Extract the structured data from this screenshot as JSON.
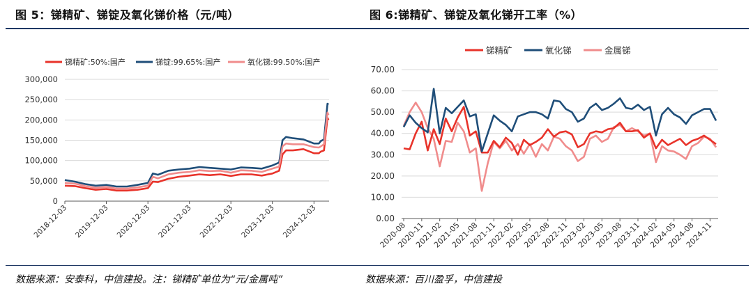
{
  "colors": {
    "red": "#e8332a",
    "navy": "#1f4e79",
    "pink": "#f08c8c",
    "grid": "#d9d9d9",
    "axis": "#595959",
    "rule": "#1f3864"
  },
  "chart_data": [
    {
      "type": "line",
      "title": "图 5：锑精矿、锑锭及氧化锑价格（元/吨）",
      "source": "数据来源：安泰科，中信建投。注：锑精矿单位为“元/金属吨”",
      "ylim": [
        0,
        300000
      ],
      "yticks": [
        "0",
        "50,000",
        "100,000",
        "150,000",
        "200,000",
        "250,000",
        "300,000"
      ],
      "xticks": [
        "2018-12-03",
        "2019-12-03",
        "2020-12-03",
        "2021-12-03",
        "2022-12-03",
        "2023-12-03",
        "2024-12-03"
      ],
      "xlim": [
        "2018-12-03",
        "2025-04-15"
      ],
      "grid": true,
      "legend_position": "top",
      "series": [
        {
          "name": "锑精矿:50%:国产",
          "color": "#e8332a",
          "x": [
            "2018-12-03",
            "2019-03-01",
            "2019-06-01",
            "2019-09-01",
            "2019-12-03",
            "2020-03-01",
            "2020-06-01",
            "2020-09-01",
            "2020-12-03",
            "2021-01-15",
            "2021-03-01",
            "2021-06-01",
            "2021-09-01",
            "2021-12-03",
            "2022-03-01",
            "2022-06-01",
            "2022-09-01",
            "2022-12-03",
            "2023-03-01",
            "2023-06-01",
            "2023-09-01",
            "2023-12-03",
            "2024-02-01",
            "2024-03-01",
            "2024-04-01",
            "2024-06-01",
            "2024-09-01",
            "2024-12-03",
            "2025-01-15",
            "2025-02-01",
            "2025-03-01",
            "2025-04-01",
            "2025-04-10"
          ],
          "y": [
            38000,
            37000,
            32000,
            28000,
            30000,
            26000,
            26000,
            28000,
            32000,
            48000,
            47000,
            55000,
            60000,
            63000,
            66000,
            64000,
            66000,
            62000,
            66000,
            66000,
            63000,
            68000,
            75000,
            115000,
            125000,
            125000,
            128000,
            118000,
            118000,
            122000,
            125000,
            205000,
            200000
          ]
        },
        {
          "name": "锑锭:99.65%:国产",
          "color": "#1f4e79",
          "x": [
            "2018-12-03",
            "2019-03-01",
            "2019-06-01",
            "2019-09-01",
            "2019-12-03",
            "2020-03-01",
            "2020-06-01",
            "2020-09-01",
            "2020-12-03",
            "2021-01-15",
            "2021-03-01",
            "2021-06-01",
            "2021-09-01",
            "2021-12-03",
            "2022-03-01",
            "2022-06-01",
            "2022-09-01",
            "2022-12-03",
            "2023-03-01",
            "2023-06-01",
            "2023-09-01",
            "2023-12-03",
            "2024-02-01",
            "2024-03-01",
            "2024-04-01",
            "2024-06-01",
            "2024-09-01",
            "2024-12-03",
            "2025-01-15",
            "2025-02-01",
            "2025-03-01",
            "2025-04-01",
            "2025-04-10"
          ],
          "y": [
            52000,
            48000,
            42000,
            38000,
            40000,
            36000,
            36000,
            40000,
            45000,
            68000,
            65000,
            75000,
            78000,
            80000,
            84000,
            82000,
            80000,
            78000,
            83000,
            82000,
            80000,
            88000,
            95000,
            150000,
            158000,
            155000,
            152000,
            142000,
            142000,
            148000,
            152000,
            240000,
            238000
          ]
        },
        {
          "name": "氧化锑:99.50%:国产",
          "color": "#f08c8c",
          "x": [
            "2018-12-03",
            "2019-03-01",
            "2019-06-01",
            "2019-09-01",
            "2019-12-03",
            "2020-03-01",
            "2020-06-01",
            "2020-09-01",
            "2020-12-03",
            "2021-01-15",
            "2021-03-01",
            "2021-06-01",
            "2021-09-01",
            "2021-12-03",
            "2022-03-01",
            "2022-06-01",
            "2022-09-01",
            "2022-12-03",
            "2023-03-01",
            "2023-06-01",
            "2023-09-01",
            "2023-12-03",
            "2024-02-01",
            "2024-03-01",
            "2024-04-01",
            "2024-06-01",
            "2024-09-01",
            "2024-12-03",
            "2025-01-15",
            "2025-02-01",
            "2025-03-01",
            "2025-04-01",
            "2025-04-10"
          ],
          "y": [
            45000,
            43000,
            37000,
            33000,
            35000,
            31000,
            31000,
            34000,
            38000,
            60000,
            56000,
            66000,
            70000,
            72000,
            76000,
            74000,
            75000,
            70000,
            76000,
            75000,
            72000,
            80000,
            85000,
            135000,
            142000,
            140000,
            140000,
            133000,
            132000,
            135000,
            140000,
            218000,
            212000
          ]
        }
      ]
    },
    {
      "type": "line",
      "title": "图 6:锑精矿、锑锭及氧化锑开工率（%）",
      "source": "数据来源：百川盈孚，中信建投",
      "ylim": [
        0,
        70
      ],
      "yticks": [
        "0.00",
        "10.00",
        "20.00",
        "30.00",
        "40.00",
        "50.00",
        "60.00",
        "70.00"
      ],
      "categories": [
        "2020-08",
        "2020-09",
        "2020-10",
        "2020-11",
        "2020-12",
        "2021-01",
        "2021-02",
        "2021-03",
        "2021-04",
        "2021-05",
        "2021-06",
        "2021-07",
        "2021-08",
        "2021-09",
        "2021-10",
        "2021-11",
        "2021-12",
        "2022-01",
        "2022-02",
        "2022-03",
        "2022-04",
        "2022-05",
        "2022-06",
        "2022-07",
        "2022-08",
        "2022-09",
        "2022-10",
        "2022-11",
        "2022-12",
        "2023-01",
        "2023-02",
        "2023-03",
        "2023-04",
        "2023-05",
        "2023-06",
        "2023-07",
        "2023-08",
        "2023-09",
        "2023-10",
        "2023-11",
        "2023-12",
        "2024-01",
        "2024-02",
        "2024-03",
        "2024-04",
        "2024-05",
        "2024-06",
        "2024-07",
        "2024-08",
        "2024-09",
        "2024-10",
        "2024-11",
        "2024-12"
      ],
      "xticks": [
        "2020-08",
        "2020-11",
        "2021-02",
        "2021-05",
        "2021-08",
        "2021-11",
        "2022-02",
        "2022-05",
        "2022-08",
        "2022-11",
        "2023-02",
        "2023-05",
        "2023-08",
        "2023-11",
        "2024-02",
        "2024-05",
        "2024-08",
        "2024-11"
      ],
      "grid": true,
      "legend_position": "top",
      "series": [
        {
          "name": "锑精矿",
          "color": "#e8332a",
          "values": [
            33,
            32.5,
            40,
            45.5,
            32,
            42,
            35,
            47,
            41,
            47.5,
            52.5,
            39,
            41,
            31,
            31,
            36.5,
            33.5,
            38,
            35.5,
            30,
            37,
            34.5,
            36,
            38,
            42,
            38.5,
            40.5,
            41,
            39.5,
            33.5,
            35,
            40,
            41,
            40.5,
            42,
            42.5,
            45,
            41,
            41,
            41.5,
            38,
            40,
            33,
            37,
            34.5,
            36,
            37.5,
            34.5,
            36.5,
            37.5,
            39,
            37,
            35
          ]
        },
        {
          "name": "氧化锑",
          "color": "#1f4e79",
          "values": [
            43,
            48.5,
            45,
            42.5,
            40.5,
            61,
            40,
            52,
            49.5,
            52.5,
            55.5,
            48,
            49,
            31.5,
            40,
            48.5,
            46,
            44,
            41,
            48,
            49,
            50,
            50,
            49,
            47,
            55.5,
            55,
            51.5,
            50,
            45.5,
            47,
            52,
            54,
            51,
            52,
            54,
            56.5,
            52,
            51.5,
            53.5,
            51,
            52.5,
            39,
            49,
            52,
            49,
            47.5,
            44.5,
            48.5,
            50,
            51.5,
            51.5,
            46
          ]
        },
        {
          "name": "金属锑",
          "color": "#f08c8c",
          "values": [
            43.5,
            50,
            54.5,
            50,
            42.5,
            37.5,
            24.5,
            36.5,
            36,
            45,
            41,
            31,
            33,
            13,
            26,
            36,
            33,
            36.5,
            32,
            35,
            30.5,
            35,
            29,
            35,
            32,
            38.5,
            37.5,
            34,
            32,
            27,
            29,
            37.5,
            39,
            36,
            37.5,
            43,
            44,
            41,
            42.5,
            41,
            39,
            40,
            26.5,
            34,
            32,
            31.5,
            30,
            28,
            34,
            35.5,
            38.5,
            37.5,
            33.5
          ]
        }
      ]
    }
  ]
}
